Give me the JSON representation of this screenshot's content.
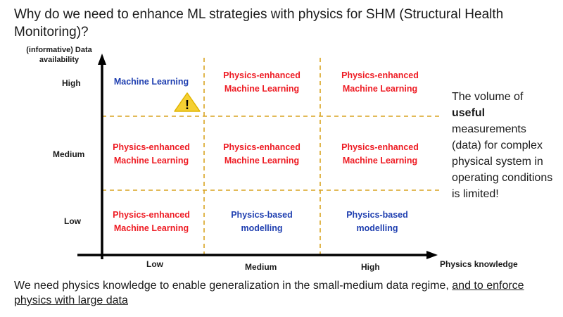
{
  "title": "Why do we need to enhance ML strategies with physics for SHM (Structural Health Monitoring)?",
  "y_axis": {
    "label": "(informative) Data availability",
    "ticks": [
      "High",
      "Medium",
      "Low"
    ]
  },
  "x_axis": {
    "label": "Physics knowledge",
    "ticks": [
      "Low",
      "Medium",
      "High"
    ]
  },
  "grid": {
    "row_high": [
      {
        "line1": "Machine Learning",
        "line2": "",
        "color": "#1f3fb0"
      },
      {
        "line1": "Physics-enhanced",
        "line2": "Machine Learning",
        "color": "#ee1c24"
      },
      {
        "line1": "Physics-enhanced",
        "line2": "Machine Learning",
        "color": "#ee1c24"
      }
    ],
    "row_medium": [
      {
        "line1": "Physics-enhanced",
        "line2": "Machine Learning",
        "color": "#ee1c24"
      },
      {
        "line1": "Physics-enhanced",
        "line2": "Machine Learning",
        "color": "#ee1c24"
      },
      {
        "line1": "Physics-enhanced",
        "line2": "Machine Learning",
        "color": "#ee1c24"
      }
    ],
    "row_low": [
      {
        "line1": "Physics-enhanced",
        "line2": "Machine Learning",
        "color": "#ee1c24"
      },
      {
        "line1": "Physics-based",
        "line2": "modelling",
        "color": "#1f3fb0"
      },
      {
        "line1": "Physics-based",
        "line2": "modelling",
        "color": "#1f3fb0"
      }
    ]
  },
  "warning_icon": {
    "name": "warning-icon",
    "symbol": "!",
    "color": "#f5d033"
  },
  "side_note": {
    "part1": "The volume of",
    "bold": "useful",
    "part2": "measurements (data) for complex physical system in operating conditions is limited!"
  },
  "footer": {
    "plain": "We need physics knowledge to enable generalization in the small-medium data regime,",
    "underlined": "and to enforce physics with large data"
  }
}
